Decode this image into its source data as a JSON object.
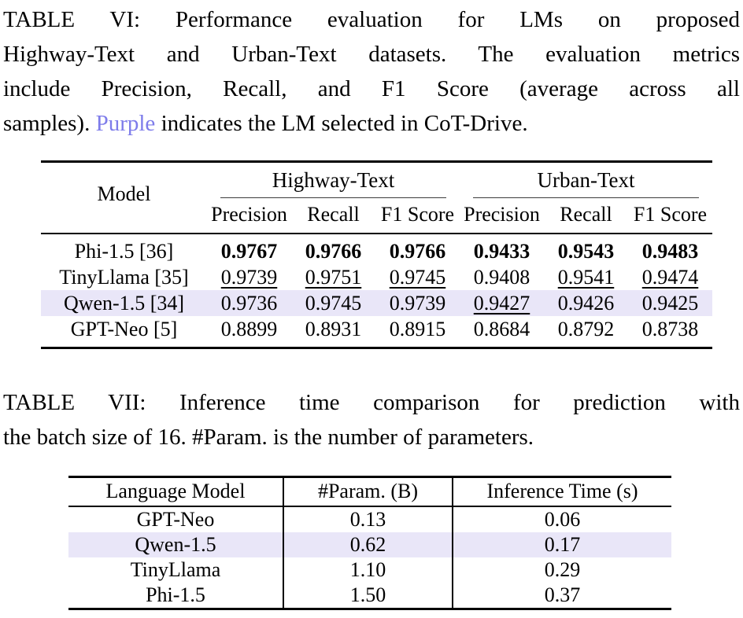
{
  "colors": {
    "purple_text": "#7E7CEA",
    "highlight_row": "#E9E6F8"
  },
  "table_vi": {
    "caption_lines": [
      "TABLE VI: Performance evaluation for LMs on proposed",
      "Highway-Text and Urban-Text datasets. The evaluation metrics",
      "include Precision, Recall, and F1 Score (average across all"
    ],
    "caption_last": {
      "before": "samples). ",
      "purple_word": "Purple",
      "after": " indicates the LM selected in CoT-Drive."
    },
    "header": {
      "model_label": "Model",
      "groups": [
        "Highway-Text",
        "Urban-Text"
      ],
      "metrics": [
        "Precision",
        "Recall",
        "F1 Score",
        "Precision",
        "Recall",
        "F1 Score"
      ]
    },
    "rows": [
      {
        "model": "Phi-1.5 [36]",
        "row_style": "",
        "cells": [
          {
            "v": "0.9767",
            "s": "bold"
          },
          {
            "v": "0.9766",
            "s": "bold"
          },
          {
            "v": "0.9766",
            "s": "bold"
          },
          {
            "v": "0.9433",
            "s": "bold"
          },
          {
            "v": "0.9543",
            "s": "bold"
          },
          {
            "v": "0.9483",
            "s": "bold"
          }
        ]
      },
      {
        "model": "TinyLlama [35]",
        "row_style": "",
        "cells": [
          {
            "v": "0.9739",
            "s": "underline"
          },
          {
            "v": "0.9751",
            "s": "underline"
          },
          {
            "v": "0.9745",
            "s": "underline"
          },
          {
            "v": "0.9408",
            "s": ""
          },
          {
            "v": "0.9541",
            "s": "underline"
          },
          {
            "v": "0.9474",
            "s": "underline"
          }
        ]
      },
      {
        "model": "Qwen-1.5 [34]",
        "row_style": "highlight",
        "cells": [
          {
            "v": "0.9736",
            "s": ""
          },
          {
            "v": "0.9745",
            "s": ""
          },
          {
            "v": "0.9739",
            "s": ""
          },
          {
            "v": "0.9427",
            "s": "underline"
          },
          {
            "v": "0.9426",
            "s": ""
          },
          {
            "v": "0.9425",
            "s": ""
          }
        ]
      },
      {
        "model": "GPT-Neo [5]",
        "row_style": "",
        "cells": [
          {
            "v": "0.8899",
            "s": ""
          },
          {
            "v": "0.8931",
            "s": ""
          },
          {
            "v": "0.8915",
            "s": ""
          },
          {
            "v": "0.8684",
            "s": ""
          },
          {
            "v": "0.8792",
            "s": ""
          },
          {
            "v": "0.8738",
            "s": ""
          }
        ]
      }
    ]
  },
  "table_vii": {
    "caption_lines": [
      "TABLE VII: Inference time comparison for prediction with",
      "the batch size of 16. #Param. is the number of parameters."
    ],
    "headers": [
      "Language Model",
      "#Param. (B)",
      "Inference Time (s)"
    ],
    "rows": [
      {
        "model": "GPT-Neo",
        "params_b": "0.13",
        "inference_time_s": "0.06",
        "row_style": ""
      },
      {
        "model": "Qwen-1.5",
        "params_b": "0.62",
        "inference_time_s": "0.17",
        "row_style": "highlight"
      },
      {
        "model": "TinyLlama",
        "params_b": "1.10",
        "inference_time_s": "0.29",
        "row_style": ""
      },
      {
        "model": "Phi-1.5",
        "params_b": "1.50",
        "inference_time_s": "0.37",
        "row_style": ""
      }
    ]
  }
}
